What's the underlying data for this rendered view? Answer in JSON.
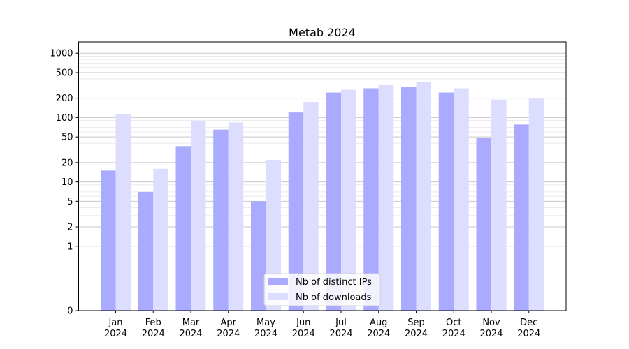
{
  "chart_data": {
    "type": "bar",
    "title": "Metab 2024",
    "xlabel": "",
    "ylabel": "",
    "yscale": "symlog",
    "ylim": [
      0,
      1500
    ],
    "yticks": [
      0,
      1,
      2,
      5,
      10,
      20,
      50,
      100,
      200,
      500,
      1000
    ],
    "ytick_labels": [
      "0",
      "1",
      "2",
      "5",
      "10",
      "20",
      "50",
      "100",
      "200",
      "500",
      "1000"
    ],
    "grid": "horizontal",
    "legend_position": "bottom-center",
    "categories": [
      [
        "Jan",
        "2024"
      ],
      [
        "Feb",
        "2024"
      ],
      [
        "Mar",
        "2024"
      ],
      [
        "Apr",
        "2024"
      ],
      [
        "May",
        "2024"
      ],
      [
        "Jun",
        "2024"
      ],
      [
        "Jul",
        "2024"
      ],
      [
        "Aug",
        "2024"
      ],
      [
        "Sep",
        "2024"
      ],
      [
        "Oct",
        "2024"
      ],
      [
        "Nov",
        "2024"
      ],
      [
        "Dec",
        "2024"
      ]
    ],
    "series": [
      {
        "name": "Nb of distinct IPs",
        "color": "#aaaaff",
        "values": [
          15,
          7,
          36,
          65,
          5,
          120,
          245,
          285,
          300,
          245,
          48,
          78
        ]
      },
      {
        "name": "Nb of downloads",
        "color": "#ddddff",
        "values": [
          112,
          16,
          88,
          84,
          22,
          175,
          270,
          320,
          360,
          285,
          190,
          197
        ]
      }
    ]
  }
}
